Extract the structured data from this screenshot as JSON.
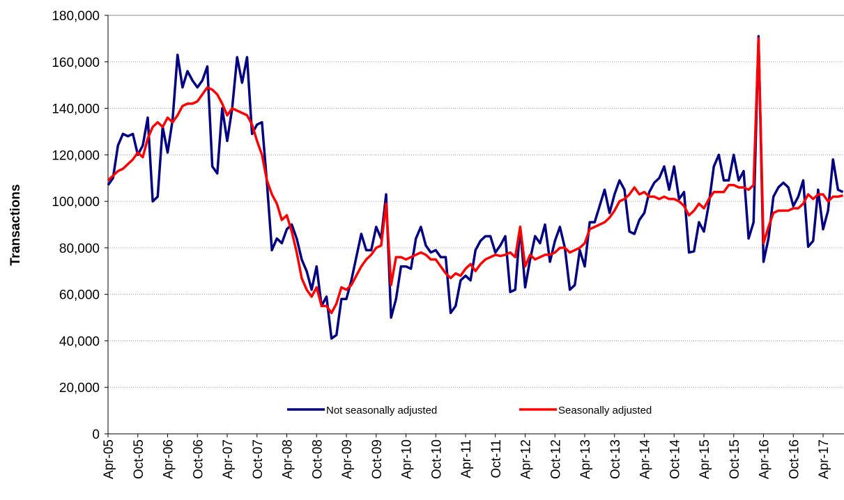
{
  "chart_data": {
    "type": "line",
    "y_label": "Transactions",
    "ylim": [
      0,
      180000
    ],
    "yticks": [
      0,
      {
        "value": 20000,
        "label": "20,000"
      },
      {
        "value": 40000,
        "label": "40,000"
      },
      {
        "value": 60000,
        "label": "60,000"
      },
      {
        "value": 80000,
        "label": "80,000"
      },
      {
        "value": 100000,
        "label": "100,000"
      },
      {
        "value": 120000,
        "label": "120,000"
      },
      {
        "value": 140000,
        "label": "140,000"
      },
      {
        "value": 160000,
        "label": "160,000"
      },
      {
        "value": 180000,
        "label": "180,000"
      }
    ],
    "grid": true,
    "legend": "bottom",
    "categories": [
      "Apr-05",
      null,
      null,
      null,
      null,
      null,
      "Oct-05",
      null,
      null,
      null,
      null,
      null,
      "Apr-06",
      null,
      null,
      null,
      null,
      null,
      "Oct-06",
      null,
      null,
      null,
      null,
      null,
      "Apr-07",
      null,
      null,
      null,
      null,
      null,
      "Oct-07",
      null,
      null,
      null,
      null,
      null,
      "Apr-08",
      null,
      null,
      null,
      null,
      null,
      "Oct-08",
      null,
      null,
      null,
      null,
      null,
      "Apr-09",
      null,
      null,
      null,
      null,
      null,
      "Oct-09",
      null,
      null,
      null,
      null,
      null,
      "Apr-10",
      null,
      null,
      null,
      null,
      null,
      "Oct-10",
      null,
      null,
      null,
      null,
      null,
      "Apr-11",
      null,
      null,
      null,
      null,
      null,
      "Oct-11",
      null,
      null,
      null,
      null,
      null,
      "Apr-12",
      null,
      null,
      null,
      null,
      null,
      "Oct-12",
      null,
      null,
      null,
      null,
      null,
      "Apr-13",
      null,
      null,
      null,
      null,
      null,
      "Oct-13",
      null,
      null,
      null,
      null,
      null,
      "Apr-14",
      null,
      null,
      null,
      null,
      null,
      "Oct-14",
      null,
      null,
      null,
      null,
      null,
      "Apr-15",
      null,
      null,
      null,
      null,
      null,
      "Oct-15",
      null,
      null,
      null,
      null,
      null,
      "Apr-16",
      null,
      null,
      null,
      null,
      null,
      "Oct-16",
      null,
      null,
      null,
      null,
      null,
      "Apr-17",
      null,
      null,
      null,
      null
    ],
    "series": [
      {
        "name": "Not seasonally adjusted",
        "color": "#000080",
        "values": [
          107000,
          110000,
          124000,
          129000,
          128000,
          129000,
          120000,
          124000,
          136000,
          100000,
          102000,
          132000,
          121000,
          135000,
          163000,
          149000,
          156000,
          152000,
          149000,
          152000,
          158000,
          115000,
          112000,
          140000,
          126000,
          140000,
          162000,
          151000,
          162000,
          129000,
          133000,
          134000,
          108000,
          79000,
          84000,
          82000,
          88000,
          90000,
          84000,
          75000,
          70000,
          62000,
          72000,
          55000,
          59000,
          41000,
          42500,
          58000,
          58000,
          66000,
          76000,
          86000,
          79000,
          79000,
          89000,
          84000,
          103000,
          50000,
          58000,
          72000,
          72000,
          71000,
          84000,
          89000,
          81000,
          78000,
          79000,
          76000,
          76000,
          52000,
          55000,
          66000,
          68000,
          66000,
          79000,
          83000,
          85000,
          85000,
          78000,
          81000,
          85000,
          61000,
          62000,
          89000,
          63000,
          75000,
          85000,
          82000,
          90000,
          74000,
          83000,
          89000,
          80000,
          62000,
          64000,
          79000,
          72000,
          91000,
          91000,
          98000,
          105000,
          95000,
          103000,
          109000,
          105000,
          87000,
          86000,
          92000,
          95000,
          104000,
          108000,
          110000,
          115000,
          105000,
          115000,
          101000,
          104000,
          78000,
          78500,
          91000,
          87000,
          99000,
          115000,
          120000,
          109000,
          109000,
          120000,
          109000,
          113000,
          84000,
          91000,
          171000,
          74000,
          84000,
          102000,
          106000,
          108000,
          106000,
          98000,
          102000,
          109000,
          80500,
          83000,
          105000,
          88000,
          96000,
          118000,
          105000,
          104000
        ]
      },
      {
        "name": "Seasonally adjusted",
        "color": "#ff0000",
        "values": [
          109000,
          111000,
          113000,
          114000,
          116000,
          118000,
          121000,
          119000,
          127000,
          132000,
          134000,
          132000,
          136000,
          134000,
          137000,
          141000,
          142000,
          142000,
          143000,
          146000,
          149000,
          148000,
          146000,
          142000,
          137000,
          140000,
          139000,
          138000,
          137000,
          133000,
          126000,
          120000,
          109000,
          103000,
          99000,
          92000,
          94000,
          87000,
          78000,
          67000,
          62000,
          59000,
          63000,
          55000,
          55000,
          52000,
          56000,
          63000,
          62000,
          64000,
          68000,
          72000,
          75000,
          77000,
          80000,
          81000,
          99000,
          64000,
          76000,
          76000,
          75000,
          76000,
          77000,
          78000,
          77000,
          75000,
          75000,
          72000,
          69000,
          67000,
          69000,
          68000,
          71000,
          73000,
          70000,
          73000,
          75000,
          76000,
          77000,
          76500,
          77000,
          78000,
          76000,
          89000,
          72000,
          77000,
          75000,
          76000,
          77000,
          77000,
          78000,
          80000,
          80000,
          78000,
          79000,
          80000,
          82000,
          88000,
          89000,
          90000,
          91000,
          93000,
          96000,
          100000,
          101000,
          103000,
          106000,
          103000,
          104000,
          102000,
          102000,
          101000,
          102000,
          101000,
          101000,
          100000,
          98000,
          94000,
          96000,
          99000,
          97000,
          101000,
          104000,
          104000,
          104000,
          107000,
          107000,
          106000,
          106000,
          105000,
          107000,
          170000,
          82000,
          89000,
          95000,
          96000,
          96000,
          96000,
          97000,
          97000,
          99000,
          103000,
          101000,
          103000,
          103000,
          100000,
          102000,
          102000,
          102500
        ]
      }
    ]
  }
}
